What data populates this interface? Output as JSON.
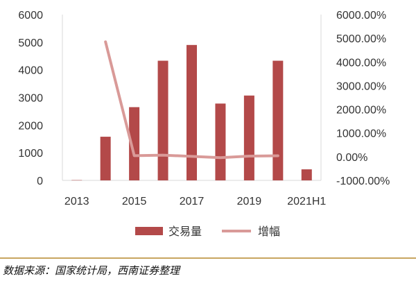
{
  "chart_data": {
    "type": "bar",
    "categories": [
      "2013",
      "2014",
      "2015",
      "2016",
      "2017",
      "2018",
      "2019",
      "2020",
      "2021H1"
    ],
    "x_tick_labels": [
      "2013",
      "2015",
      "2017",
      "2019",
      "2021H1"
    ],
    "series": [
      {
        "name": "交易量",
        "type": "bar",
        "axis": "left",
        "color": "#b34949",
        "values": [
          10,
          1580,
          2650,
          4330,
          4900,
          2780,
          3070,
          4330,
          400
        ]
      },
      {
        "name": "增幅",
        "type": "line",
        "axis": "right",
        "color": "#d99a98",
        "values": [
          null,
          4850,
          45,
          65,
          15,
          -40,
          25,
          40,
          null
        ]
      }
    ],
    "y_left": {
      "ylim": [
        0,
        6000
      ],
      "ticks": [
        "0",
        "1000",
        "2000",
        "3000",
        "4000",
        "5000",
        "6000"
      ]
    },
    "y_right": {
      "ylim": [
        -1000,
        6000
      ],
      "ticks": [
        "-1000.00%",
        "0.00%",
        "1000.00%",
        "2000.00%",
        "3000.00%",
        "4000.00%",
        "5000.00%",
        "6000.00%"
      ]
    },
    "grid": false,
    "legend": "bottom",
    "title": "",
    "xlabel": "",
    "ylabel": ""
  },
  "source": "数据来源：国家统计局，西南证券整理",
  "colors": {
    "bar": "#b34949",
    "line": "#d99a98",
    "axis": "#d9d9d9",
    "rule": "#c8a560"
  }
}
